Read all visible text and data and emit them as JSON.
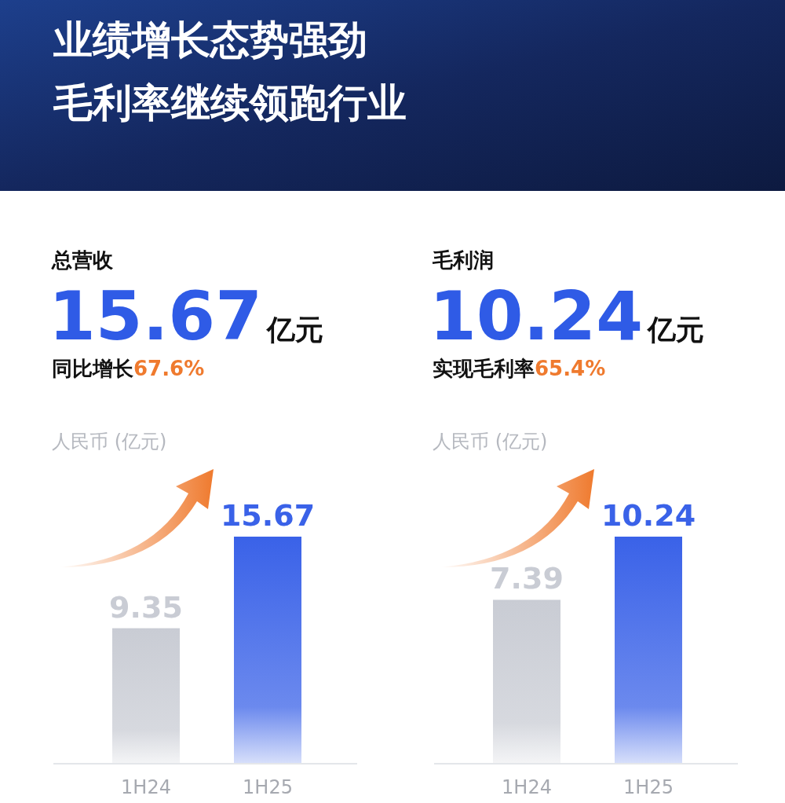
{
  "chart_data": [
    {
      "type": "other",
      "title": "业绩增长态势强劲",
      "subtitle": "毛利率继续领跑行业"
    },
    {
      "type": "bar",
      "title": "总营收",
      "subtitle": "15.67亿元",
      "annotations": [
        "同比增长67.6%"
      ],
      "ylabel": "人民币 (亿元)",
      "categories": [
        "1H24",
        "1H25"
      ],
      "values": [
        9.35,
        15.67
      ],
      "colors": [
        "#c9ccd4",
        "#3a62e8"
      ],
      "data_labels": true
    },
    {
      "type": "bar",
      "title": "毛利润",
      "subtitle": "10.24亿元",
      "annotations": [
        "实现毛利率65.4%"
      ],
      "ylabel": "人民币 (亿元)",
      "categories": [
        "1H24",
        "1H25"
      ],
      "values": [
        7.39,
        10.24
      ],
      "colors": [
        "#c9ccd4",
        "#3a62e8"
      ],
      "data_labels": true
    }
  ]
}
